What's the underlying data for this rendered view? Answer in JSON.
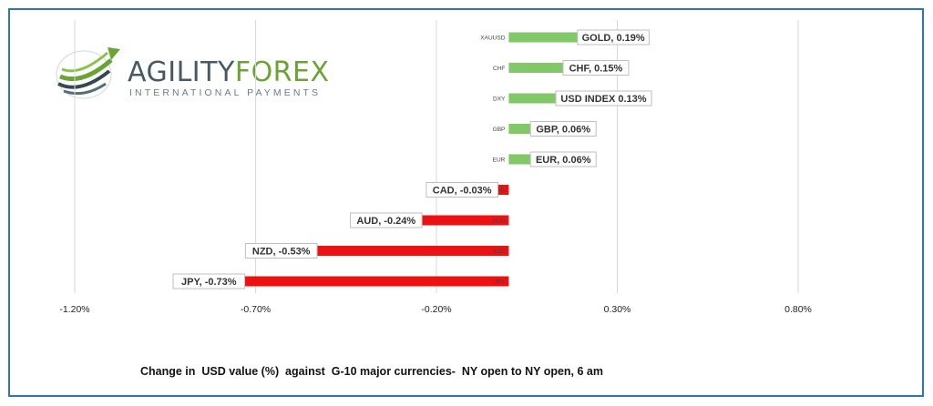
{
  "brand": {
    "main_part1": "AGILITY",
    "main_part2": "FOREX",
    "tagline": "INTERNATIONAL PAYMENTS"
  },
  "caption": "Change in  USD value (%)  against  G-10 major currencies-  NY open to NY open, 6 am",
  "colors": {
    "positive": "#82c768",
    "negative": "#ee1111",
    "grid": "#d9d9d9",
    "frame": "#2e75b6"
  },
  "chart_data": {
    "type": "bar",
    "orientation": "horizontal",
    "categories": [
      "XAUUSD",
      "CHF",
      "DXY",
      "GBP",
      "EUR",
      "CAD",
      "AUD",
      "NZD",
      "JPY"
    ],
    "values": [
      0.19,
      0.15,
      0.13,
      0.06,
      0.06,
      -0.03,
      -0.24,
      -0.53,
      -0.73
    ],
    "data_labels": [
      "GOLD, 0.19%",
      "CHF, 0.15%",
      "USD INDEX 0.13%",
      "GBP, 0.06%",
      "EUR, 0.06%",
      "CAD, -0.03%",
      "AUD, -0.24%",
      "NZD, -0.53%",
      "JPY, -0.73%"
    ],
    "xlim": [
      -1.2,
      0.8
    ],
    "xticks": [
      -1.2,
      -0.7,
      -0.2,
      0.3,
      0.8
    ],
    "xtick_labels": [
      "-1.20%",
      "-0.70%",
      "-0.20%",
      "0.30%",
      "0.80%"
    ],
    "grid": "vertical",
    "legend": "none"
  }
}
